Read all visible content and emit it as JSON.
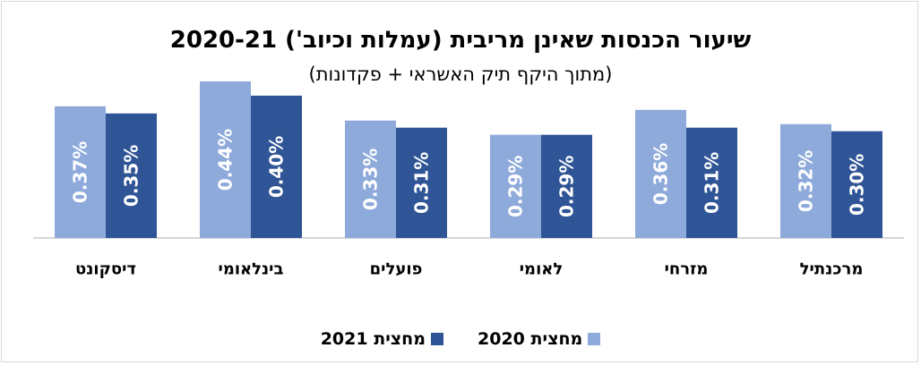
{
  "chart_data": {
    "type": "bar",
    "title": "שיעור הכנסות שאינן מריבית (עמלות וכיוב') 2020-21",
    "subtitle": "(מתוך היקף תיק האשראי + פקדונות)",
    "categories": [
      "מרכנתיל",
      "מזרחי",
      "לאומי",
      "פועלים",
      "בינלאומי",
      "דיסקונט"
    ],
    "series": [
      {
        "name": "מחצית 2020",
        "color": "#8eaadb",
        "values": [
          0.32,
          0.36,
          0.29,
          0.33,
          0.44,
          0.37
        ],
        "labels": [
          "0.32%",
          "0.36%",
          "0.29%",
          "0.33%",
          "0.44%",
          "0.37%"
        ]
      },
      {
        "name": "מחצית 2021",
        "color": "#2f5597",
        "values": [
          0.3,
          0.31,
          0.29,
          0.31,
          0.4,
          0.35
        ],
        "labels": [
          "0.30%",
          "0.31%",
          "0.29%",
          "0.31%",
          "0.40%",
          "0.35%"
        ]
      }
    ],
    "ylim": [
      0,
      0.5
    ],
    "grid": false,
    "legend_position": "bottom",
    "category_order": "right-to-left"
  }
}
